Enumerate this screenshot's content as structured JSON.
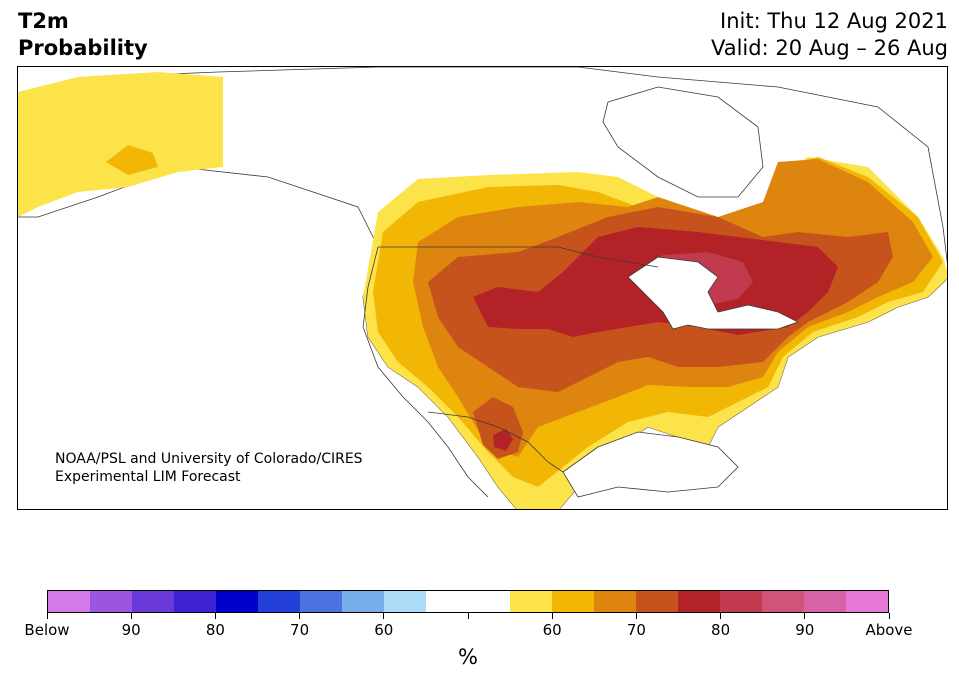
{
  "header": {
    "variable_line1": "T2m",
    "variable_line2": "Probability",
    "init_text": "Init: Thu 12 Aug 2021",
    "valid_text": "Valid: 20 Aug – 26 Aug"
  },
  "credit": {
    "line1": "NOAA/PSL and University of Colorado/CIRES",
    "line2": "Experimental LIM Forecast"
  },
  "map": {
    "ocean_color": "#ffffff",
    "land_outline_color": "#3a3a3a",
    "shading": [
      {
        "category": "above-55",
        "color": "#fde34a"
      },
      {
        "category": "above-60",
        "color": "#f2b705"
      },
      {
        "category": "above-70",
        "color": "#de8510"
      },
      {
        "category": "above-75",
        "color": "#c6531b"
      },
      {
        "category": "above-80",
        "color": "#b22226"
      },
      {
        "category": "above-85",
        "color": "#c23a4e"
      }
    ]
  },
  "colorbar": {
    "colors": [
      "#d47ae8",
      "#9b55e0",
      "#6a3ad8",
      "#3d22d4",
      "#0000cc",
      "#2240d8",
      "#4a73e0",
      "#78aeeb",
      "#aadcf8",
      "#ffffff",
      "#ffffff",
      "#fde34a",
      "#f2b705",
      "#de8510",
      "#c6531b",
      "#b22226",
      "#c23a4e",
      "#cf5478",
      "#d862a8",
      "#e77ad8"
    ],
    "labels": [
      {
        "text": "Below",
        "index": 0
      },
      {
        "text": "90",
        "index": 2
      },
      {
        "text": "80",
        "index": 4
      },
      {
        "text": "70",
        "index": 6
      },
      {
        "text": "60",
        "index": 8
      },
      {
        "text": "",
        "index": 10
      },
      {
        "text": "60",
        "index": 12
      },
      {
        "text": "70",
        "index": 14
      },
      {
        "text": "80",
        "index": 16
      },
      {
        "text": "90",
        "index": 18
      },
      {
        "text": "Above",
        "index": 20
      }
    ],
    "unit": "%"
  }
}
